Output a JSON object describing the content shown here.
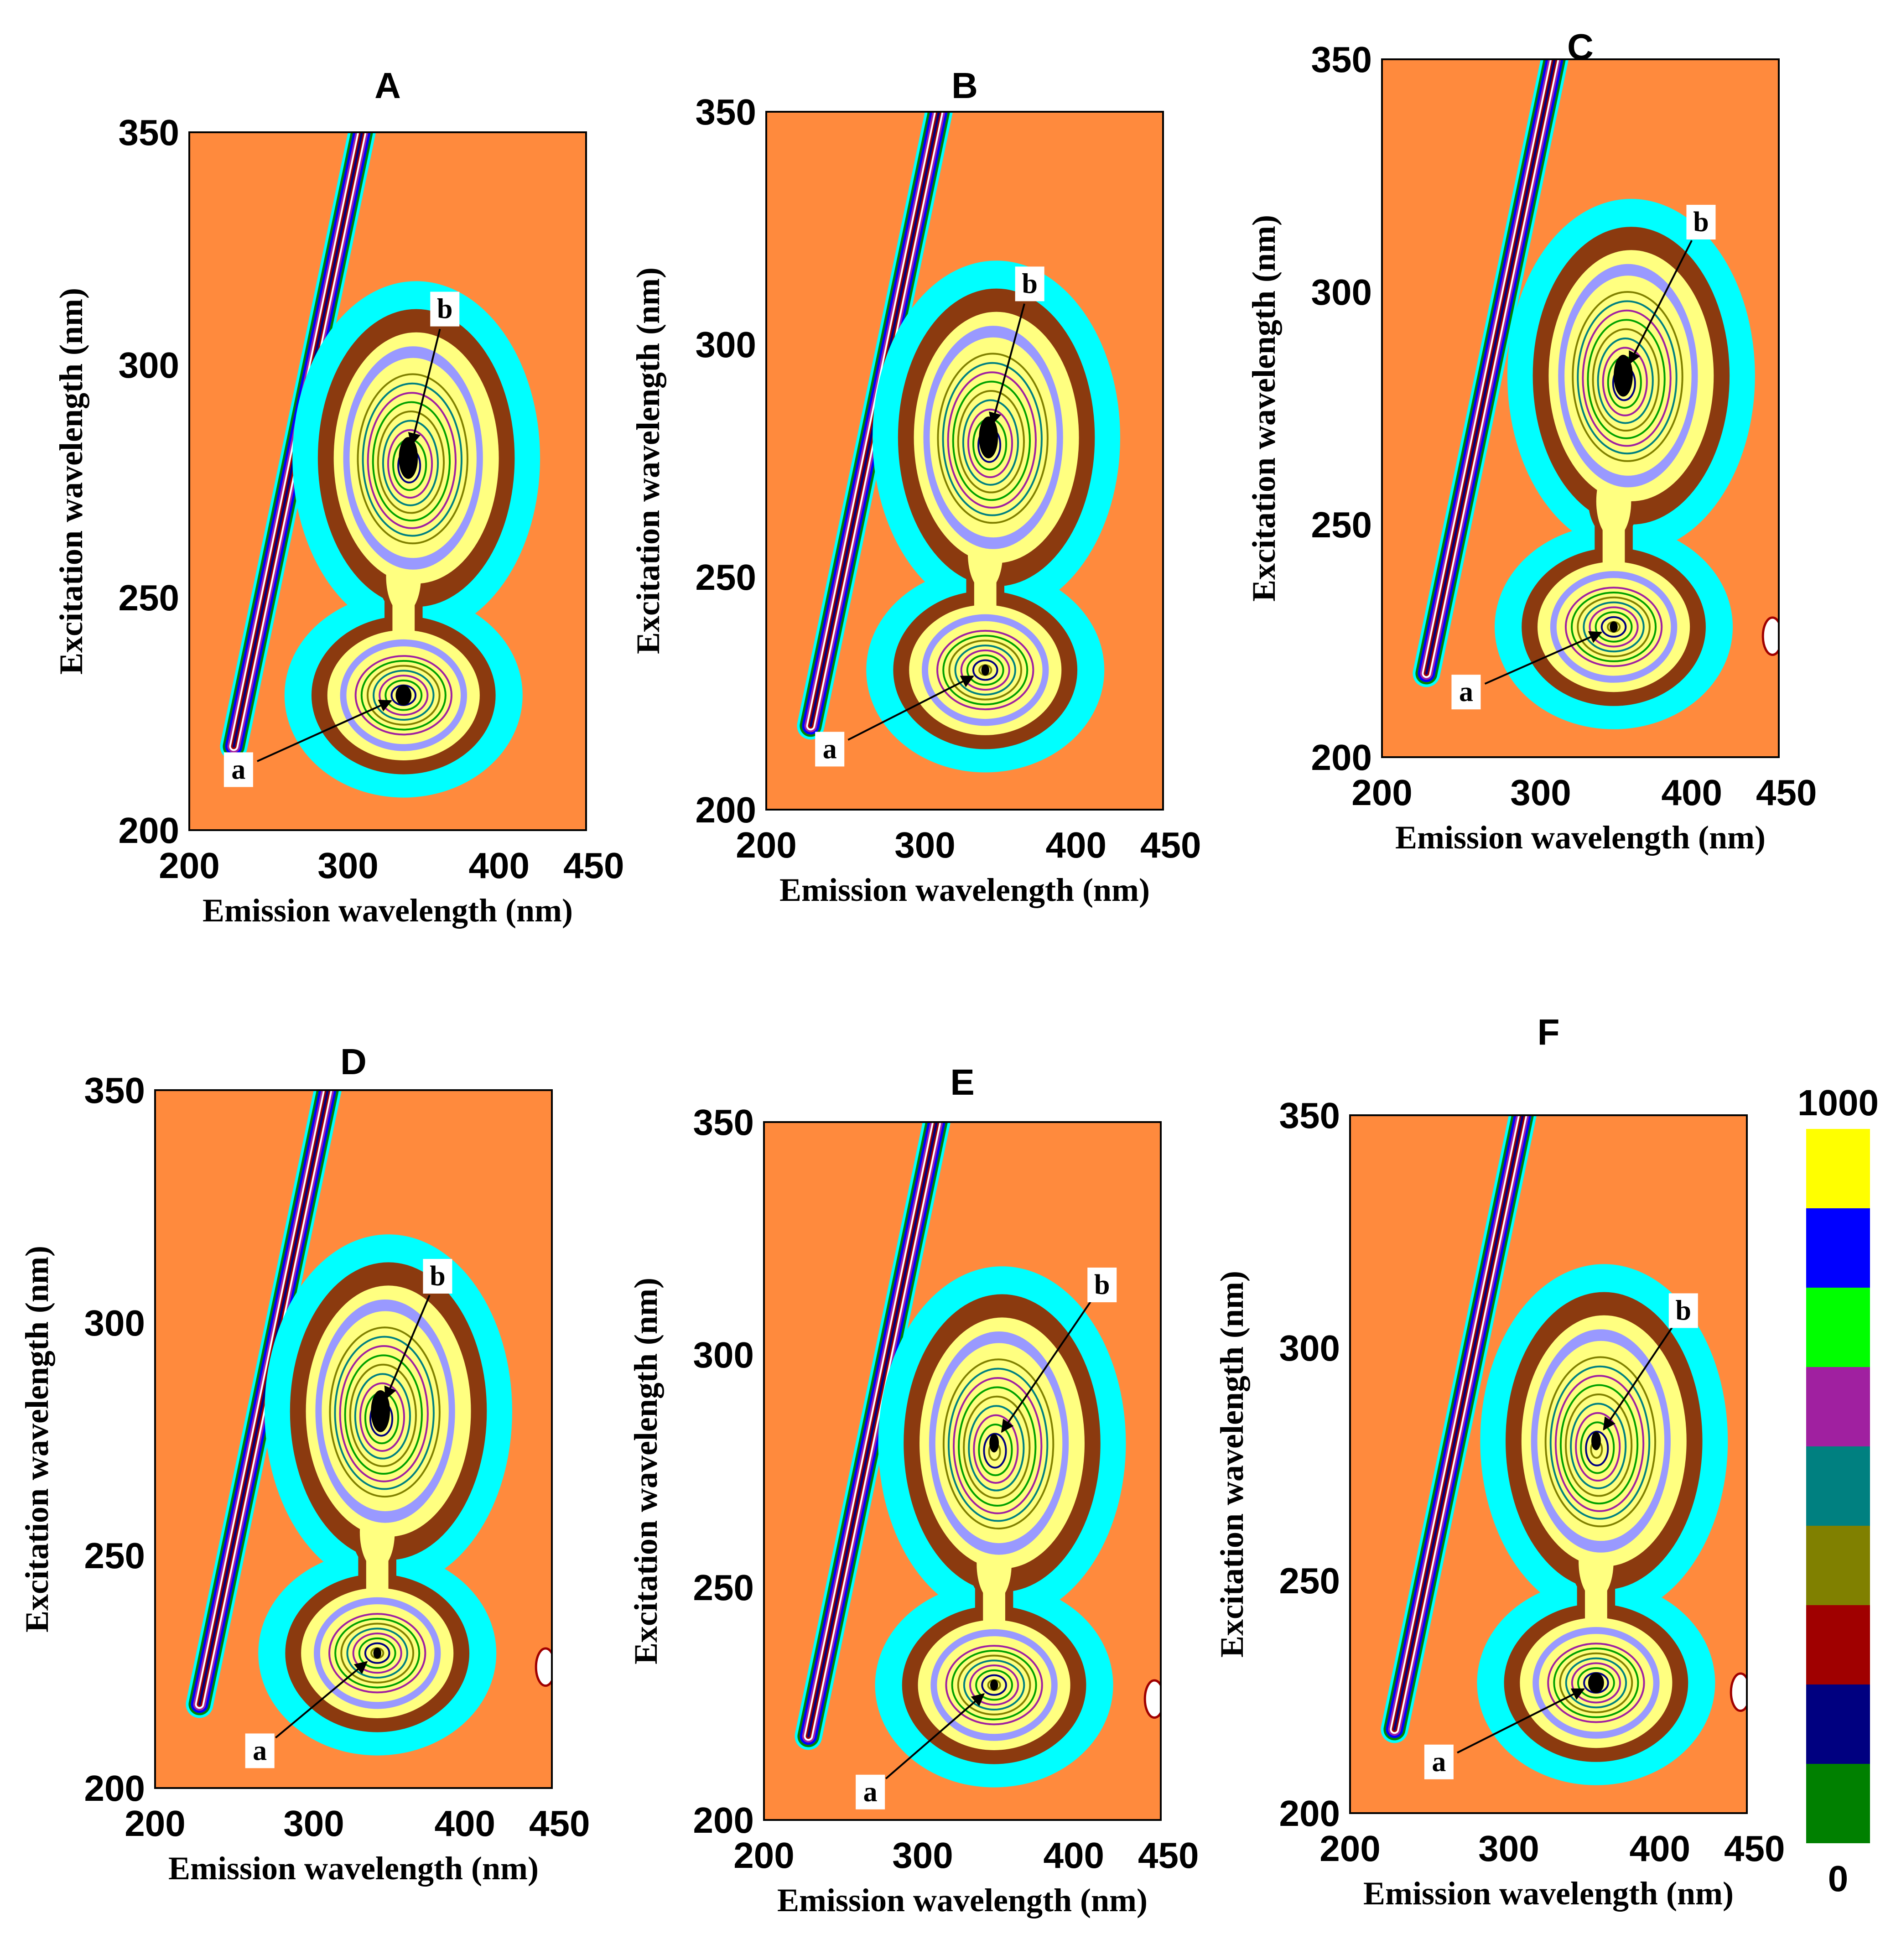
{
  "chart_data": {
    "type": "contour",
    "x_range": [
      200,
      450
    ],
    "y_range": [
      200,
      350
    ],
    "x_ticks": [
      "200",
      "300",
      "400",
      "450"
    ],
    "x_tick_values": [
      200,
      300,
      400,
      450
    ],
    "y_ticks": [
      "200",
      "250",
      "300",
      "350"
    ],
    "y_tick_values": [
      200,
      250,
      300,
      350
    ],
    "xlabel": "Emission wavelength  (nm)",
    "ylabel": "Excitation wavelength (nm)",
    "background_color": "#FF8A3D",
    "level_colors": [
      "#00FFFF",
      "#8B3A0F",
      "#FFFF80",
      "#9999FF",
      "#808000",
      "#008080",
      "#800080",
      "#00A000",
      "#000080",
      "#000000"
    ],
    "panels": [
      {
        "id": "A",
        "title": "A",
        "peak_a": {
          "label": "a",
          "em": 335,
          "ex": 229,
          "intensity": 9
        },
        "peak_b": {
          "label": "b",
          "em": 338,
          "ex": 280,
          "intensity": 10
        },
        "annotation_a": {
          "em": 231,
          "ex": 213
        },
        "annotation_b": {
          "em": 361,
          "ex": 312
        }
      },
      {
        "id": "B",
        "title": "B",
        "peak_a": {
          "label": "a",
          "em": 338,
          "ex": 230,
          "intensity": 6
        },
        "peak_b": {
          "label": "b",
          "em": 340,
          "ex": 280,
          "intensity": 10
        },
        "annotation_a": {
          "em": 240,
          "ex": 213
        },
        "annotation_b": {
          "em": 366,
          "ex": 313
        }
      },
      {
        "id": "C",
        "title": "C",
        "peak_a": {
          "label": "a",
          "em": 346,
          "ex": 228,
          "intensity": 6
        },
        "peak_b": {
          "label": "b",
          "em": 352,
          "ex": 282,
          "intensity": 10
        },
        "annotation_a": {
          "em": 253,
          "ex": 214
        },
        "annotation_b": {
          "em": 401,
          "ex": 315
        }
      },
      {
        "id": "D",
        "title": "D",
        "peak_a": {
          "label": "a",
          "em": 340,
          "ex": 229,
          "intensity": 7
        },
        "peak_b": {
          "label": "b",
          "em": 342,
          "ex": 281,
          "intensity": 10
        },
        "annotation_a": {
          "em": 266,
          "ex": 208
        },
        "annotation_b": {
          "em": 378,
          "ex": 310
        }
      },
      {
        "id": "E",
        "title": "E",
        "peak_a": {
          "label": "a",
          "em": 345,
          "ex": 229,
          "intensity": 7
        },
        "peak_b": {
          "label": "b",
          "em": 345,
          "ex": 281,
          "intensity": 9
        },
        "annotation_a": {
          "em": 267,
          "ex": 206
        },
        "annotation_b": {
          "em": 413,
          "ex": 315
        }
      },
      {
        "id": "F",
        "title": "F",
        "peak_a": {
          "label": "a",
          "em": 355,
          "ex": 228,
          "intensity": 8
        },
        "peak_b": {
          "label": "b",
          "em": 355,
          "ex": 280,
          "intensity": 7
        },
        "annotation_a": {
          "em": 256,
          "ex": 211
        },
        "annotation_b": {
          "em": 410,
          "ex": 308
        }
      }
    ],
    "colorbar": {
      "max_label": "1000",
      "min_label": "0",
      "colors_top_to_bottom": [
        "#FFFF00",
        "#0000FF",
        "#00FF00",
        "#A020A0",
        "#008080",
        "#808000",
        "#A00000",
        "#000080",
        "#008000"
      ]
    }
  }
}
